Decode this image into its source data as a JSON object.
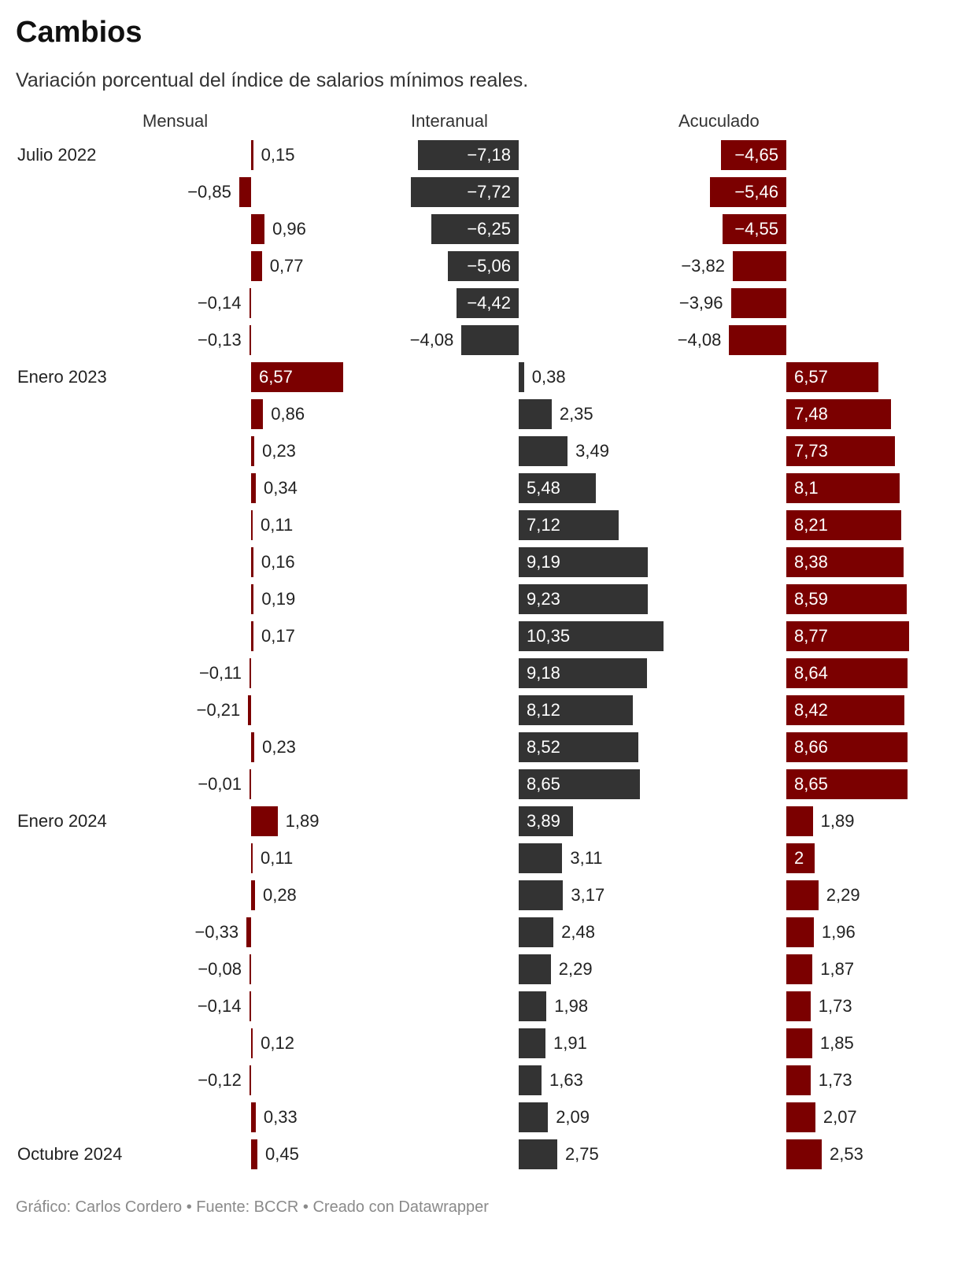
{
  "title": "Cambios",
  "subtitle": "Variación porcentual del índice de salarios mínimos reales.",
  "footer": "Gráfico: Carlos Cordero • Fuente: BCCR • Creado con Datawrapper",
  "colors": {
    "mensual": "#7b0000",
    "interanual": "#333333",
    "acumulado": "#7b0000"
  },
  "chart_data": {
    "type": "bar",
    "orientation": "horizontal",
    "title": "Cambios",
    "row_labels": [
      "Julio 2022",
      "",
      "",
      "",
      "",
      "",
      "Enero 2023",
      "",
      "",
      "",
      "",
      "",
      "",
      "",
      "",
      "",
      "",
      "",
      "Enero 2024",
      "",
      "",
      "",
      "",
      "",
      "",
      "",
      "",
      "Octubre 2024"
    ],
    "series": [
      {
        "name": "Mensual",
        "values": [
          0.15,
          -0.85,
          0.96,
          0.77,
          -0.14,
          -0.13,
          6.57,
          0.86,
          0.23,
          0.34,
          0.11,
          0.16,
          0.19,
          0.17,
          -0.11,
          -0.21,
          0.23,
          -0.01,
          1.89,
          0.11,
          0.28,
          -0.33,
          -0.08,
          -0.14,
          0.12,
          -0.12,
          0.33,
          0.45
        ]
      },
      {
        "name": "Interanual",
        "values": [
          -7.18,
          -7.72,
          -6.25,
          -5.06,
          -4.42,
          -4.08,
          0.38,
          2.35,
          3.49,
          5.48,
          7.12,
          9.19,
          9.23,
          10.35,
          9.18,
          8.12,
          8.52,
          8.65,
          3.89,
          3.11,
          3.17,
          2.48,
          2.29,
          1.98,
          1.91,
          1.63,
          2.09,
          2.75
        ]
      },
      {
        "name": "Acuculado",
        "values": [
          -4.65,
          -5.46,
          -4.55,
          -3.82,
          -3.96,
          -4.08,
          6.57,
          7.48,
          7.73,
          8.1,
          8.21,
          8.38,
          8.59,
          8.77,
          8.64,
          8.42,
          8.66,
          8.65,
          1.89,
          2,
          2.29,
          1.96,
          1.87,
          1.73,
          1.85,
          1.73,
          2.07,
          2.53
        ]
      }
    ]
  }
}
